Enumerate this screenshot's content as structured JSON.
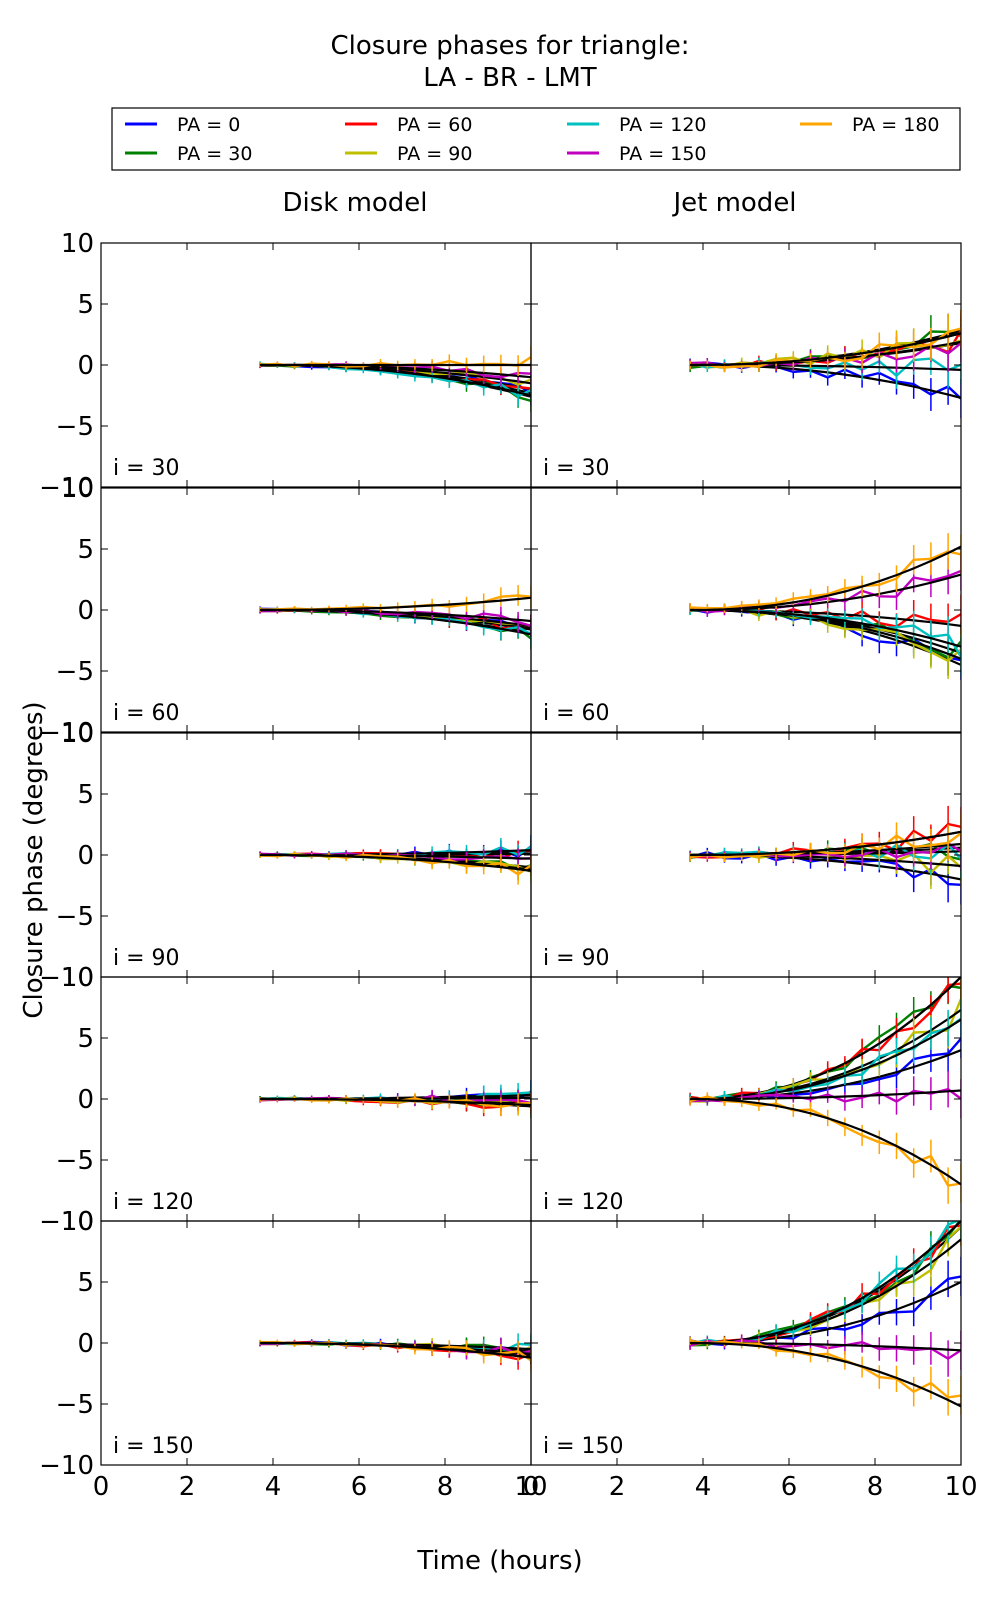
{
  "figure": {
    "title_line1": "Closure phases for triangle:",
    "title_line2": "LA - BR - LMT",
    "col_titles": [
      "Disk model",
      "Jet model"
    ],
    "xlabel": "Time (hours)",
    "ylabel": "Closure phase (degrees)"
  },
  "legend": [
    {
      "label": "PA = 0",
      "color": "#0000ff"
    },
    {
      "label": "PA = 30",
      "color": "#008000"
    },
    {
      "label": "PA = 60",
      "color": "#ff0000"
    },
    {
      "label": "PA = 90",
      "color": "#bfbf00"
    },
    {
      "label": "PA = 120",
      "color": "#00bfbf"
    },
    {
      "label": "PA = 150",
      "color": "#bf00bf"
    },
    {
      "label": "PA = 180",
      "color": "#ffa500"
    }
  ],
  "chart_data": {
    "type": "line",
    "xlim": [
      0,
      10
    ],
    "ylim": [
      -10,
      10
    ],
    "x_ticks": [
      0,
      2,
      4,
      6,
      8,
      10
    ],
    "y_ticks": [
      -10,
      -5,
      0,
      5,
      10
    ],
    "x": [
      3.7,
      4.1,
      4.5,
      4.9,
      5.3,
      5.7,
      6.1,
      6.5,
      6.9,
      7.3,
      7.7,
      8.1,
      8.5,
      8.9,
      9.3,
      9.7,
      10.0
    ],
    "series_names": [
      "PA = 0",
      "PA = 30",
      "PA = 60",
      "PA = 90",
      "PA = 120",
      "PA = 150",
      "PA = 180"
    ],
    "panels": [
      {
        "column": "Disk model",
        "label": "i = 30",
        "end_values": [
          -2.0,
          -2.6,
          -2.3,
          -1.5,
          -2.5,
          -1.0,
          0.2
        ],
        "model_end": [
          -2.0,
          -2.6,
          -2.3,
          -1.5,
          -2.5,
          -1.0,
          0.0
        ]
      },
      {
        "column": "Jet model",
        "label": "i = 30",
        "end_values": [
          -2.7,
          2.8,
          1.8,
          2.6,
          -0.4,
          1.9,
          2.6
        ],
        "model_end": [
          -2.7,
          2.8,
          1.8,
          2.6,
          -0.4,
          1.9,
          2.6
        ]
      },
      {
        "column": "Disk model",
        "label": "i = 60",
        "end_values": [
          -1.6,
          -1.9,
          -1.5,
          -1.3,
          -2.0,
          -0.9,
          1.0
        ],
        "model_end": [
          -1.6,
          -1.9,
          -1.5,
          -1.3,
          -2.0,
          -0.9,
          1.0
        ]
      },
      {
        "column": "Jet model",
        "label": "i = 60",
        "end_values": [
          -4.5,
          -3.5,
          -1.3,
          -4.0,
          -3.0,
          2.9,
          5.2
        ],
        "model_end": [
          -4.5,
          -3.5,
          -1.3,
          -4.0,
          -3.0,
          2.9,
          5.2
        ]
      },
      {
        "column": "Disk model",
        "label": "i = 90",
        "end_values": [
          0.3,
          -1.0,
          0.1,
          -1.2,
          0.4,
          -0.3,
          -1.3
        ],
        "model_end": [
          0.3,
          -1.0,
          0.1,
          -1.2,
          0.4,
          -0.3,
          -1.3
        ]
      },
      {
        "column": "Jet model",
        "label": "i = 90",
        "end_values": [
          -2.0,
          0.6,
          1.9,
          -0.9,
          0.3,
          0.9,
          1.9
        ],
        "model_end": [
          -2.0,
          0.6,
          1.9,
          -0.9,
          0.3,
          0.9,
          1.9
        ]
      },
      {
        "column": "Disk model",
        "label": "i = 120",
        "end_values": [
          0.4,
          -0.5,
          -0.6,
          -0.4,
          0.3,
          0.1,
          -0.5
        ],
        "model_end": [
          0.4,
          -0.5,
          -0.6,
          -0.4,
          0.3,
          0.1,
          -0.5
        ]
      },
      {
        "column": "Jet model",
        "label": "i = 120",
        "end_values": [
          4.0,
          10.0,
          10.0,
          7.3,
          6.5,
          0.7,
          -7.0
        ],
        "model_end": [
          4.0,
          10.0,
          10.0,
          7.3,
          6.5,
          0.7,
          -7.0
        ]
      },
      {
        "column": "Disk model",
        "label": "i = 150",
        "end_values": [
          -0.9,
          -0.6,
          -1.1,
          -0.7,
          -0.5,
          -0.9,
          -1.2
        ],
        "model_end": [
          -0.9,
          -0.6,
          -1.1,
          -0.7,
          -0.5,
          -0.9,
          -1.2
        ]
      },
      {
        "column": "Jet model",
        "label": "i = 150",
        "end_values": [
          5.0,
          9.5,
          10.0,
          8.5,
          10.0,
          -0.6,
          -5.2
        ],
        "model_end": [
          5.0,
          9.5,
          10.0,
          8.5,
          10.0,
          -0.6,
          -5.2
        ]
      }
    ]
  }
}
